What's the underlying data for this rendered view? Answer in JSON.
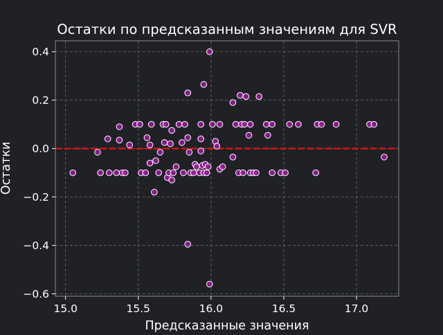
{
  "chart_data": {
    "type": "scatter",
    "title": "Остатки по предсказанным значениям для SVR",
    "xlabel": "Предсказанные значения",
    "ylabel": "Остатки",
    "xlim": [
      14.93,
      17.29
    ],
    "ylim": [
      -0.61,
      0.445
    ],
    "xticks": [
      15.0,
      15.5,
      16.0,
      16.5,
      17.0
    ],
    "xtick_labels": [
      "15.0",
      "15.5",
      "16.0",
      "16.5",
      "17.0"
    ],
    "yticks": [
      -0.6,
      -0.4,
      -0.2,
      0.0,
      0.2,
      0.4
    ],
    "ytick_labels": [
      "−0.6",
      "−0.4",
      "−0.2",
      "0.0",
      "0.2",
      "0.4"
    ],
    "grid": true,
    "reference_line": {
      "y": 0,
      "style": "dashed",
      "color": "#e01010"
    },
    "colors": {
      "background": "#1f2125",
      "plot_background": "#1f2125",
      "point_fill": "#9d179d",
      "point_edge": "#ffffff",
      "grid": "#6a6c70",
      "spine": "#8a8c90"
    },
    "points": [
      {
        "x": 15.05,
        "y": -0.1
      },
      {
        "x": 15.22,
        "y": -0.015
      },
      {
        "x": 15.24,
        "y": -0.1
      },
      {
        "x": 15.29,
        "y": 0.04
      },
      {
        "x": 15.3,
        "y": -0.1
      },
      {
        "x": 15.35,
        "y": -0.1
      },
      {
        "x": 15.37,
        "y": 0.09
      },
      {
        "x": 15.37,
        "y": 0.035
      },
      {
        "x": 15.39,
        "y": -0.1
      },
      {
        "x": 15.41,
        "y": -0.1
      },
      {
        "x": 15.44,
        "y": 0.015
      },
      {
        "x": 15.48,
        "y": 0.1
      },
      {
        "x": 15.51,
        "y": 0.1
      },
      {
        "x": 15.52,
        "y": -0.1
      },
      {
        "x": 15.55,
        "y": -0.1
      },
      {
        "x": 15.56,
        "y": 0.045
      },
      {
        "x": 15.58,
        "y": -0.06
      },
      {
        "x": 15.58,
        "y": 0.015
      },
      {
        "x": 15.59,
        "y": 0.1
      },
      {
        "x": 15.61,
        "y": -0.18
      },
      {
        "x": 15.62,
        "y": -0.05
      },
      {
        "x": 15.64,
        "y": -0.1
      },
      {
        "x": 15.65,
        "y": -0.015
      },
      {
        "x": 15.67,
        "y": 0.1
      },
      {
        "x": 15.68,
        "y": 0.025
      },
      {
        "x": 15.69,
        "y": 0.1
      },
      {
        "x": 15.7,
        "y": -0.12
      },
      {
        "x": 15.71,
        "y": -0.1
      },
      {
        "x": 15.72,
        "y": 0.02
      },
      {
        "x": 15.73,
        "y": -0.13
      },
      {
        "x": 15.73,
        "y": 0.075
      },
      {
        "x": 15.74,
        "y": -0.1
      },
      {
        "x": 15.76,
        "y": -0.075
      },
      {
        "x": 15.78,
        "y": 0.1
      },
      {
        "x": 15.8,
        "y": 0.025
      },
      {
        "x": 15.81,
        "y": -0.1
      },
      {
        "x": 15.82,
        "y": 0.1
      },
      {
        "x": 15.84,
        "y": 0.23
      },
      {
        "x": 15.84,
        "y": 0.045
      },
      {
        "x": 15.84,
        "y": -0.395
      },
      {
        "x": 15.85,
        "y": -0.015
      },
      {
        "x": 15.86,
        "y": -0.1
      },
      {
        "x": 15.88,
        "y": -0.1
      },
      {
        "x": 15.89,
        "y": -0.065
      },
      {
        "x": 15.9,
        "y": -0.075
      },
      {
        "x": 15.92,
        "y": -0.1
      },
      {
        "x": 15.93,
        "y": 0.1
      },
      {
        "x": 15.93,
        "y": 0.04
      },
      {
        "x": 15.93,
        "y": -0.01
      },
      {
        "x": 15.94,
        "y": -0.07
      },
      {
        "x": 15.95,
        "y": 0.265
      },
      {
        "x": 15.95,
        "y": -0.1
      },
      {
        "x": 15.96,
        "y": -0.065
      },
      {
        "x": 15.97,
        "y": -0.1
      },
      {
        "x": 15.98,
        "y": -0.075
      },
      {
        "x": 15.99,
        "y": 0.4
      },
      {
        "x": 15.99,
        "y": -0.56
      },
      {
        "x": 16.01,
        "y": 0.1
      },
      {
        "x": 16.03,
        "y": 0.03
      },
      {
        "x": 16.04,
        "y": 0.01
      },
      {
        "x": 16.06,
        "y": 0.1
      },
      {
        "x": 16.06,
        "y": -0.085
      },
      {
        "x": 16.08,
        "y": -0.075
      },
      {
        "x": 16.15,
        "y": 0.19
      },
      {
        "x": 16.15,
        "y": -0.035
      },
      {
        "x": 16.17,
        "y": 0.1
      },
      {
        "x": 16.19,
        "y": -0.1
      },
      {
        "x": 16.2,
        "y": 0.22
      },
      {
        "x": 16.21,
        "y": 0.1
      },
      {
        "x": 16.22,
        "y": -0.1
      },
      {
        "x": 16.23,
        "y": 0.1
      },
      {
        "x": 16.24,
        "y": 0.215
      },
      {
        "x": 16.26,
        "y": 0.055
      },
      {
        "x": 16.27,
        "y": 0.1
      },
      {
        "x": 16.27,
        "y": -0.1
      },
      {
        "x": 16.29,
        "y": -0.1
      },
      {
        "x": 16.31,
        "y": -0.1
      },
      {
        "x": 16.33,
        "y": 0.215
      },
      {
        "x": 16.38,
        "y": 0.1
      },
      {
        "x": 16.39,
        "y": 0.055
      },
      {
        "x": 16.42,
        "y": 0.1
      },
      {
        "x": 16.42,
        "y": -0.1
      },
      {
        "x": 16.48,
        "y": -0.1
      },
      {
        "x": 16.51,
        "y": -0.1
      },
      {
        "x": 16.54,
        "y": 0.1
      },
      {
        "x": 16.6,
        "y": 0.1
      },
      {
        "x": 16.72,
        "y": -0.1
      },
      {
        "x": 16.73,
        "y": 0.1
      },
      {
        "x": 16.76,
        "y": 0.1
      },
      {
        "x": 16.86,
        "y": 0.1
      },
      {
        "x": 17.09,
        "y": 0.1
      },
      {
        "x": 17.12,
        "y": 0.1
      },
      {
        "x": 17.19,
        "y": -0.035
      }
    ]
  }
}
